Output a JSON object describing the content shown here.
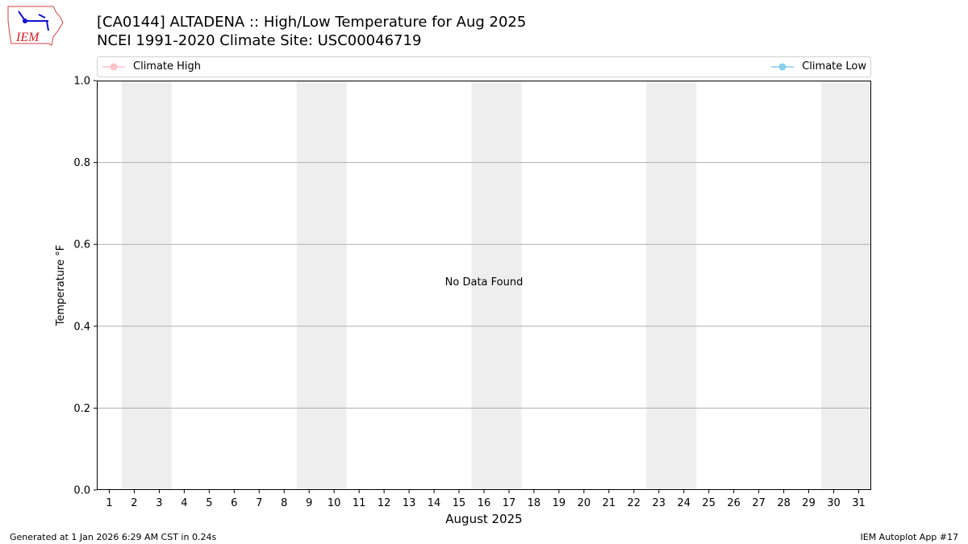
{
  "title_line1": "[CA0144] ALTADENA :: High/Low Temperature for Aug 2025",
  "title_line2": "NCEI 1991-2020 Climate Site: USC00046719",
  "logo_text": "IEM",
  "footer_left": "Generated at 1 Jan 2026 6:29 AM CST in 0.24s",
  "footer_right": "IEM Autoplot App #17",
  "chart_data": {
    "type": "line",
    "xlabel": "August 2025",
    "ylabel": "Temperature °F",
    "annotation": "No Data Found",
    "xlim": [
      0.5,
      31.5
    ],
    "ylim": [
      0,
      1
    ],
    "x_ticks": [
      1,
      2,
      3,
      4,
      5,
      6,
      7,
      8,
      9,
      10,
      11,
      12,
      13,
      14,
      15,
      16,
      17,
      18,
      19,
      20,
      21,
      22,
      23,
      24,
      25,
      26,
      27,
      28,
      29,
      30,
      31
    ],
    "y_ticks": [
      "0.0",
      "0.2",
      "0.4",
      "0.6",
      "0.8",
      "1.0"
    ],
    "grid": "horizontal",
    "weekend_shading": [
      [
        2,
        3
      ],
      [
        9,
        10
      ],
      [
        16,
        17
      ],
      [
        23,
        24
      ],
      [
        30,
        31
      ]
    ],
    "legend_placement": "top",
    "series": [
      {
        "name": "Climate High",
        "color": "#ffc0cb",
        "values": []
      },
      {
        "name": "Climate Low",
        "color": "#87ceeb",
        "values": []
      }
    ]
  }
}
